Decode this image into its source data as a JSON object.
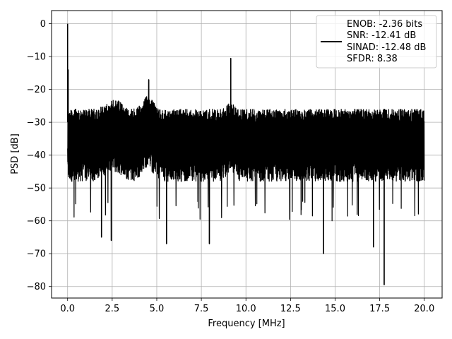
{
  "chart_data": {
    "type": "line",
    "xlabel": "Frequency [MHz]",
    "ylabel": "PSD [dB]",
    "xlim": [
      -0.9,
      21.0
    ],
    "ylim": [
      -83.5,
      4
    ],
    "xticks": [
      0.0,
      2.5,
      5.0,
      7.5,
      10.0,
      12.5,
      15.0,
      17.5,
      20.0
    ],
    "xtick_labels": [
      "0.0",
      "2.5",
      "5.0",
      "7.5",
      "10.0",
      "12.5",
      "15.0",
      "17.5",
      "20.0"
    ],
    "yticks": [
      0,
      -10,
      -20,
      -30,
      -40,
      -50,
      -60,
      -70,
      -80
    ],
    "ytick_labels": [
      "0",
      "−10",
      "−20",
      "−30",
      "−40",
      "−50",
      "−60",
      "−70",
      "−80"
    ],
    "grid": true,
    "legend_position": "top-right",
    "line_color": "#000000",
    "legend_lines": [
      "ENOB: -2.36 bits",
      "SNR: -12.41 dB",
      "SINAD: -12.48 dB",
      "SFDR: 8.38"
    ],
    "series": [
      {
        "x_range": [
          0.0,
          20.0
        ],
        "spikes": [
          {
            "x": 0.0,
            "y": 0.0
          },
          {
            "x": 0.03,
            "y": -14
          },
          {
            "x": 9.15,
            "y": -10.5
          },
          {
            "x": 4.55,
            "y": -17
          },
          {
            "x": 17.75,
            "y": -79.5
          },
          {
            "x": 14.35,
            "y": -70
          },
          {
            "x": 17.15,
            "y": -68
          },
          {
            "x": 7.95,
            "y": -67
          },
          {
            "x": 5.55,
            "y": -67
          },
          {
            "x": 2.45,
            "y": -66
          },
          {
            "x": 1.9,
            "y": -65
          }
        ],
        "noise_top": -26,
        "noise_bottom": -48,
        "noise_peak_top": -23,
        "noise_deep_bottom": -60
      }
    ]
  }
}
